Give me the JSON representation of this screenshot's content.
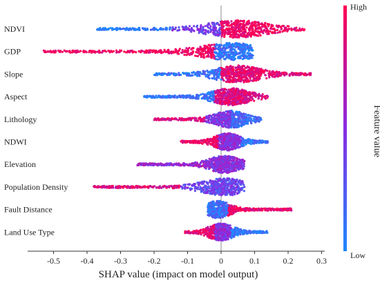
{
  "chart_data": {
    "type": "scatter",
    "subtype": "shap-beeswarm",
    "xlabel": "SHAP value (impact on model output)",
    "xlim": [
      -0.58,
      0.3
    ],
    "xticks": [
      -0.5,
      -0.4,
      -0.3,
      -0.2,
      -0.1,
      0,
      0.1,
      0.2,
      0.3
    ],
    "xtick_labels": [
      "-0.5",
      "-0.4",
      "-0.3",
      "-0.2",
      "-0.1",
      "0",
      "0.1",
      "0.2",
      "0.3"
    ],
    "colorbar": {
      "title": "Feature value",
      "high_label": "High",
      "low_label": "Low",
      "low_color": "#1e88ff",
      "mid_color": "#8a2be2",
      "high_color": "#ff0052"
    },
    "features": [
      {
        "name": "NDVI",
        "min": -0.37,
        "max": 0.25,
        "peak": 0.05,
        "segments": [
          [
            -0.37,
            -0.15,
            0.05
          ],
          [
            -0.15,
            0.0,
            0.4
          ],
          [
            0.0,
            0.25,
            0.95
          ]
        ]
      },
      {
        "name": "GDP",
        "min": -0.53,
        "max": 0.1,
        "peak": 0.03,
        "segments": [
          [
            -0.53,
            -0.02,
            0.95
          ],
          [
            -0.02,
            0.1,
            0.1
          ]
        ]
      },
      {
        "name": "Slope",
        "min": -0.2,
        "max": 0.27,
        "peak": 0.05,
        "segments": [
          [
            -0.2,
            0.0,
            0.1
          ],
          [
            0.0,
            0.27,
            0.9
          ]
        ]
      },
      {
        "name": "Aspect",
        "min": -0.23,
        "max": 0.14,
        "peak": 0.03,
        "segments": [
          [
            -0.23,
            -0.02,
            0.1
          ],
          [
            -0.02,
            0.14,
            0.85
          ]
        ]
      },
      {
        "name": "Lithology",
        "min": -0.2,
        "max": 0.12,
        "peak": 0.03,
        "segments": [
          [
            -0.2,
            -0.05,
            0.85
          ],
          [
            -0.05,
            0.03,
            0.45
          ],
          [
            0.03,
            0.12,
            0.15
          ]
        ]
      },
      {
        "name": "NDWI",
        "min": -0.12,
        "max": 0.14,
        "peak": 0.02,
        "segments": [
          [
            -0.12,
            -0.01,
            0.95
          ],
          [
            -0.01,
            0.06,
            0.5
          ],
          [
            0.06,
            0.14,
            0.1
          ]
        ]
      },
      {
        "name": "Elevation",
        "min": -0.25,
        "max": 0.07,
        "peak": 0.01,
        "segments": [
          [
            -0.25,
            -0.05,
            0.55
          ],
          [
            -0.05,
            0.07,
            0.5
          ]
        ]
      },
      {
        "name": "Population Density",
        "min": -0.38,
        "max": 0.07,
        "peak": 0.01,
        "segments": [
          [
            -0.38,
            -0.12,
            0.85
          ],
          [
            -0.12,
            0.07,
            0.35
          ]
        ]
      },
      {
        "name": "Fault Distance",
        "min": -0.04,
        "max": 0.21,
        "peak": -0.01,
        "segments": [
          [
            -0.04,
            0.02,
            0.15
          ],
          [
            0.02,
            0.21,
            0.92
          ]
        ]
      },
      {
        "name": "Land Use Type",
        "min": -0.11,
        "max": 0.14,
        "peak": 0.0,
        "segments": [
          [
            -0.11,
            -0.02,
            0.9
          ],
          [
            -0.02,
            0.03,
            0.5
          ],
          [
            0.03,
            0.14,
            0.1
          ]
        ]
      }
    ]
  }
}
